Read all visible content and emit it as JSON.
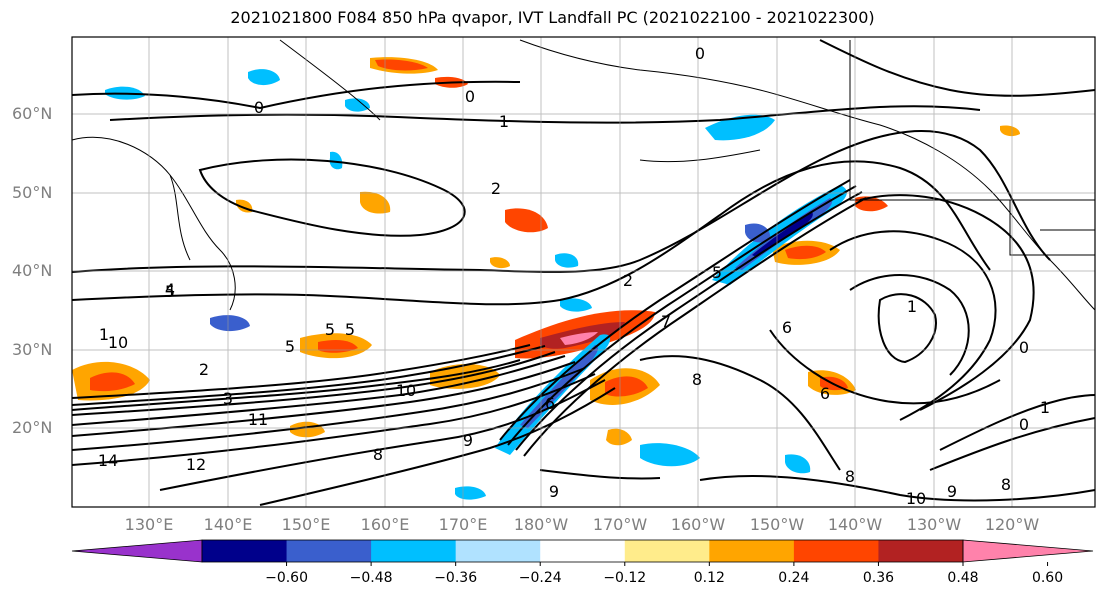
{
  "title": "2021021800 F084 850 hPa qvapor, IVT Landfall PC (2021022100 - 2021022300)",
  "lat_labels": [
    "60°N",
    "50°N",
    "40°N",
    "30°N",
    "20°N"
  ],
  "lon_labels": [
    "130°E",
    "140°E",
    "150°E",
    "160°E",
    "170°E",
    "180°W",
    "170°W",
    "160°W",
    "150°W",
    "140°W",
    "130°W",
    "120°W"
  ],
  "contour_labels": [
    "0",
    "0",
    "1",
    "0",
    "2",
    "1",
    "5",
    "5",
    "5",
    "2",
    "5",
    "1",
    "3",
    "10",
    "11",
    "7",
    "6",
    "5",
    "1",
    "0",
    "1",
    "0",
    "4",
    "6",
    "12",
    "10",
    "9",
    "9",
    "8",
    "8",
    "14",
    "8",
    "10",
    "9",
    "8",
    "6",
    "2"
  ],
  "colorbar": {
    "ticks": [
      "−0.60",
      "−0.48",
      "−0.36",
      "−0.24",
      "−0.12",
      "0.12",
      "0.24",
      "0.36",
      "0.48",
      "0.60"
    ],
    "colors": [
      "#9932cc",
      "#00008b",
      "#3a5fcd",
      "#00bfff",
      "#b0e2ff",
      "#ffffff",
      "#ffec8b",
      "#ffa500",
      "#ff4500",
      "#b22222",
      "#ff82ab"
    ]
  }
}
